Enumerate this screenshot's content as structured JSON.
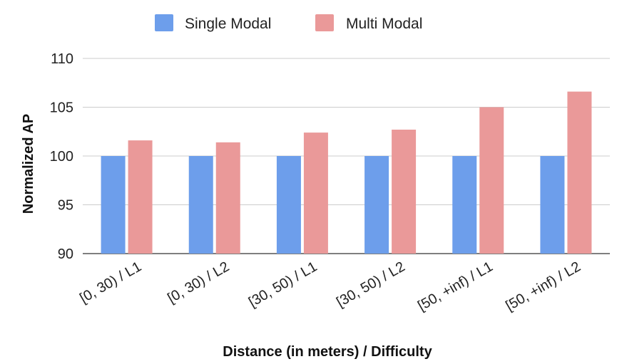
{
  "chart_data": {
    "type": "bar",
    "title": "",
    "xlabel": "Distance (in meters) / Difficulty",
    "ylabel": "Normalized AP",
    "categories": [
      "[0, 30) / L1",
      "[0, 30) / L2",
      "[30, 50) / L1",
      "[30, 50) / L2",
      "[50, +inf) / L1",
      "[50, +inf) / L2"
    ],
    "series": [
      {
        "name": "Single Modal",
        "color": "#6d9eeb",
        "values": [
          100,
          100,
          100,
          100,
          100,
          100
        ]
      },
      {
        "name": "Multi Modal",
        "color": "#ea9999",
        "values": [
          101.6,
          101.4,
          102.4,
          102.7,
          105.0,
          106.6
        ]
      }
    ],
    "ylim": [
      90,
      110
    ],
    "yticks": [
      90,
      95,
      100,
      105,
      110
    ],
    "grid": true,
    "legend_position": "top-center"
  }
}
